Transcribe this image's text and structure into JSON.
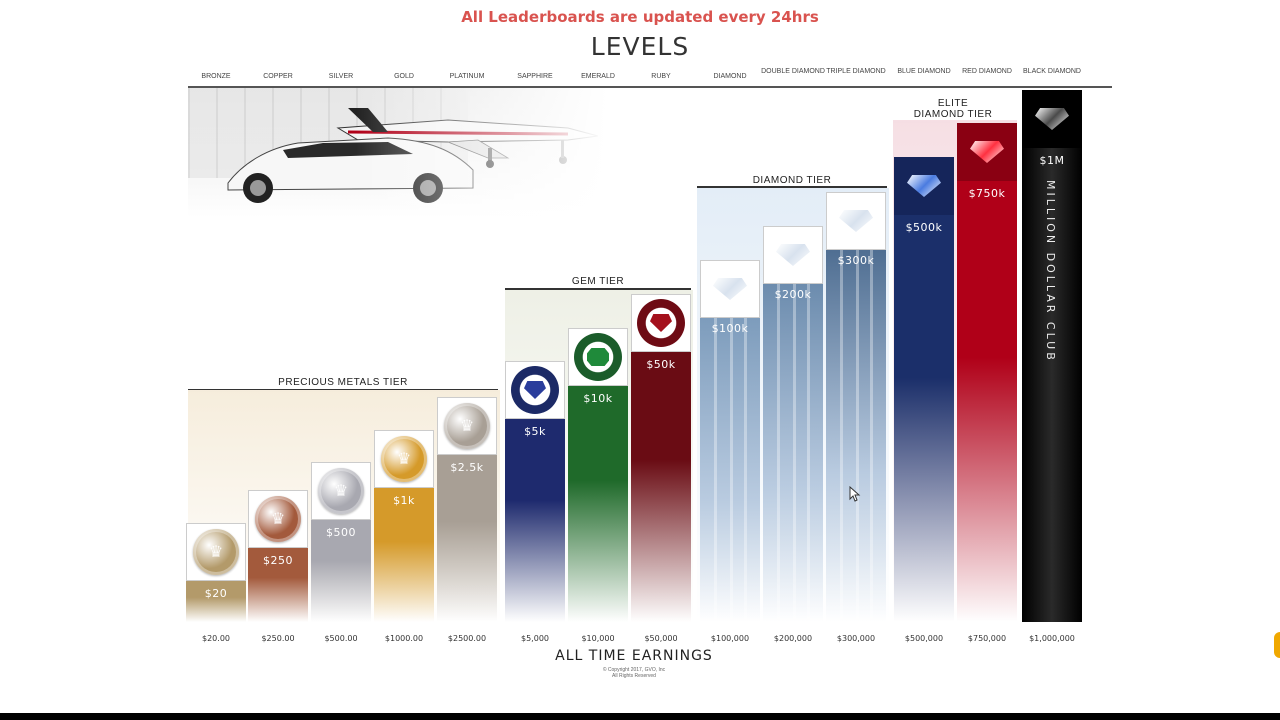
{
  "header": {
    "notice": "All Leaderboards are updated every 24hrs",
    "title": "LEVELS"
  },
  "chart_data": {
    "type": "bar",
    "title": "LEVELS",
    "xlabel": "ALL TIME EARNINGS",
    "ylabel": "",
    "categories": [
      "Bronze",
      "Copper",
      "Silver",
      "Gold",
      "Platinum",
      "Sapphire",
      "Emerald",
      "Ruby",
      "Diamond",
      "Double Diamond",
      "Triple Diamond",
      "Blue Diamond",
      "Red Diamond",
      "Black Diamond"
    ],
    "values": [
      20,
      250,
      500,
      1000,
      2500,
      5000,
      10000,
      50000,
      100000,
      200000,
      300000,
      500000,
      750000,
      1000000
    ],
    "bar_labels": [
      "$20",
      "$250",
      "$500",
      "$1k",
      "$2.5k",
      "$5k",
      "$10k",
      "$50k",
      "$100k",
      "$200k",
      "$300k",
      "$500k",
      "$750k",
      "$1M"
    ],
    "tick_labels": [
      "$20.00",
      "$250.00",
      "$500.00",
      "$1000.00",
      "$2500.00",
      "$5,000",
      "$10,000",
      "$50,000",
      "$100,000",
      "$200,000",
      "$300,000",
      "$500,000",
      "$750,000",
      "$1,000,000"
    ],
    "tiers": [
      {
        "name": "PRECIOUS METALS TIER",
        "levels": [
          "Bronze",
          "Copper",
          "Silver",
          "Gold",
          "Platinum"
        ]
      },
      {
        "name": "GEM TIER",
        "levels": [
          "Sapphire",
          "Emerald",
          "Ruby"
        ]
      },
      {
        "name": "DIAMOND TIER",
        "levels": [
          "Diamond",
          "Double Diamond",
          "Triple Diamond"
        ]
      },
      {
        "name": "ELITE DIAMOND TIER",
        "levels": [
          "Blue Diamond",
          "Red Diamond",
          "Black Diamond"
        ]
      }
    ],
    "annotations": [
      "MILLION DOLLAR CLUB"
    ],
    "colors": {
      "Bronze": "#b39a6a",
      "Copper": "#a35a3c",
      "Silver": "#a8a8b0",
      "Gold": "#d59a2a",
      "Platinum": "#a89f95",
      "Sapphire": "#1e2a6e",
      "Emerald": "#1f6a2a",
      "Ruby": "#6a0c14",
      "Diamond": "#7d9cbc",
      "Double Diamond": "#6c8cae",
      "Triple Diamond": "#4f6e92",
      "Blue Diamond": "#1b2f6a",
      "Red Diamond": "#b00018",
      "Black Diamond": "#111111"
    },
    "scale": "ordinal-staircase",
    "grid": false
  },
  "tier_labels": {
    "metals": "PRECIOUS METALS TIER",
    "gem": "GEM TIER",
    "diamond": "DIAMOND TIER",
    "elite_line1": "ELITE",
    "elite_line2": "DIAMOND TIER"
  },
  "level_names": [
    "BRONZE",
    "COPPER",
    "SILVER",
    "GOLD",
    "PLATINUM",
    "SAPPHIRE",
    "EMERALD",
    "RUBY",
    "DIAMOND",
    "DOUBLE DIAMOND",
    "TRIPLE DIAMOND",
    "BLUE DIAMOND",
    "RED DIAMOND",
    "BLACK DIAMOND"
  ],
  "million_club": "MILLION DOLLAR CLUB",
  "footer": {
    "xlabel": "ALL TIME EARNINGS",
    "copyright_line1": "© Copyright 2017, GVO, Inc",
    "copyright_line2": "All Rights Reserved"
  }
}
